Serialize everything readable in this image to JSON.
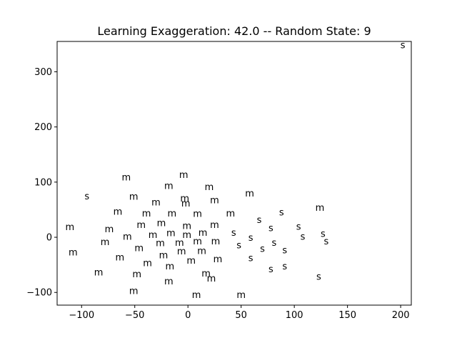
{
  "chart_data": {
    "type": "scatter",
    "title": "Learning Exaggeration: 42.0 -- Random State: 9",
    "xlabel": "",
    "ylabel": "",
    "xlim": [
      -123,
      210
    ],
    "ylim": [
      -123,
      355
    ],
    "xticks": [
      -100,
      -50,
      0,
      50,
      100,
      150,
      200
    ],
    "yticks": [
      -100,
      0,
      100,
      200,
      300
    ],
    "xtick_labels": [
      "−100",
      "−50",
      "0",
      "50",
      "100",
      "150",
      "200"
    ],
    "ytick_labels": [
      "−100",
      "0",
      "100",
      "200",
      "300"
    ],
    "grid": false,
    "points": [
      {
        "x": -58,
        "y": 108,
        "label": "m"
      },
      {
        "x": -4,
        "y": 113,
        "label": "m"
      },
      {
        "x": -18,
        "y": 93,
        "label": "m"
      },
      {
        "x": 20,
        "y": 91,
        "label": "m"
      },
      {
        "x": 58,
        "y": 79,
        "label": "m"
      },
      {
        "x": -51,
        "y": 73,
        "label": "m"
      },
      {
        "x": -30,
        "y": 63,
        "label": "m"
      },
      {
        "x": -3,
        "y": 70,
        "label": "m"
      },
      {
        "x": -2,
        "y": 61,
        "label": "m"
      },
      {
        "x": 25,
        "y": 67,
        "label": "m"
      },
      {
        "x": -66,
        "y": 46,
        "label": "m"
      },
      {
        "x": -39,
        "y": 43,
        "label": "m"
      },
      {
        "x": -15,
        "y": 43,
        "label": "m"
      },
      {
        "x": 9,
        "y": 42,
        "label": "m"
      },
      {
        "x": 40,
        "y": 43,
        "label": "m"
      },
      {
        "x": -44,
        "y": 22,
        "label": "m"
      },
      {
        "x": -25,
        "y": 25,
        "label": "m"
      },
      {
        "x": -1,
        "y": 20,
        "label": "m"
      },
      {
        "x": 25,
        "y": 22,
        "label": "m"
      },
      {
        "x": -111,
        "y": 18,
        "label": "m"
      },
      {
        "x": -74,
        "y": 14,
        "label": "m"
      },
      {
        "x": -57,
        "y": 1,
        "label": "m"
      },
      {
        "x": -33,
        "y": 4,
        "label": "m"
      },
      {
        "x": -16,
        "y": 7,
        "label": "m"
      },
      {
        "x": -1,
        "y": 4,
        "label": "m"
      },
      {
        "x": 14,
        "y": 8,
        "label": "m"
      },
      {
        "x": -78,
        "y": -9,
        "label": "m"
      },
      {
        "x": -26,
        "y": -11,
        "label": "m"
      },
      {
        "x": -8,
        "y": -10,
        "label": "m"
      },
      {
        "x": 9,
        "y": -8,
        "label": "m"
      },
      {
        "x": 26,
        "y": -8,
        "label": "m"
      },
      {
        "x": -108,
        "y": -28,
        "label": "m"
      },
      {
        "x": -46,
        "y": -20,
        "label": "m"
      },
      {
        "x": -6,
        "y": -26,
        "label": "m"
      },
      {
        "x": 13,
        "y": -25,
        "label": "m"
      },
      {
        "x": -64,
        "y": -37,
        "label": "m"
      },
      {
        "x": -23,
        "y": -33,
        "label": "m"
      },
      {
        "x": 3,
        "y": -43,
        "label": "m"
      },
      {
        "x": 28,
        "y": -40,
        "label": "m"
      },
      {
        "x": -38,
        "y": -47,
        "label": "m"
      },
      {
        "x": -17,
        "y": -53,
        "label": "m"
      },
      {
        "x": -84,
        "y": -64,
        "label": "m"
      },
      {
        "x": -48,
        "y": -67,
        "label": "m"
      },
      {
        "x": 17,
        "y": -66,
        "label": "m"
      },
      {
        "x": 22,
        "y": -75,
        "label": "m"
      },
      {
        "x": -18,
        "y": -80,
        "label": "m"
      },
      {
        "x": -51,
        "y": -98,
        "label": "m"
      },
      {
        "x": 8,
        "y": -105,
        "label": "m"
      },
      {
        "x": 50,
        "y": -105,
        "label": "m"
      },
      {
        "x": 124,
        "y": 53,
        "label": "m"
      },
      {
        "x": 202,
        "y": 348,
        "label": "s"
      },
      {
        "x": -95,
        "y": 74,
        "label": "s"
      },
      {
        "x": 88,
        "y": 45,
        "label": "s"
      },
      {
        "x": 67,
        "y": 31,
        "label": "s"
      },
      {
        "x": 78,
        "y": 16,
        "label": "s"
      },
      {
        "x": 104,
        "y": 19,
        "label": "s"
      },
      {
        "x": 43,
        "y": 8,
        "label": "s"
      },
      {
        "x": 59,
        "y": -1,
        "label": "s"
      },
      {
        "x": 108,
        "y": 1,
        "label": "s"
      },
      {
        "x": 127,
        "y": 6,
        "label": "s"
      },
      {
        "x": 130,
        "y": -8,
        "label": "s"
      },
      {
        "x": 48,
        "y": -15,
        "label": "s"
      },
      {
        "x": 81,
        "y": -10,
        "label": "s"
      },
      {
        "x": 70,
        "y": -21,
        "label": "s"
      },
      {
        "x": 91,
        "y": -24,
        "label": "s"
      },
      {
        "x": 59,
        "y": -38,
        "label": "s"
      },
      {
        "x": 91,
        "y": -53,
        "label": "s"
      },
      {
        "x": 78,
        "y": -58,
        "label": "s"
      },
      {
        "x": 123,
        "y": -72,
        "label": "s"
      }
    ]
  }
}
